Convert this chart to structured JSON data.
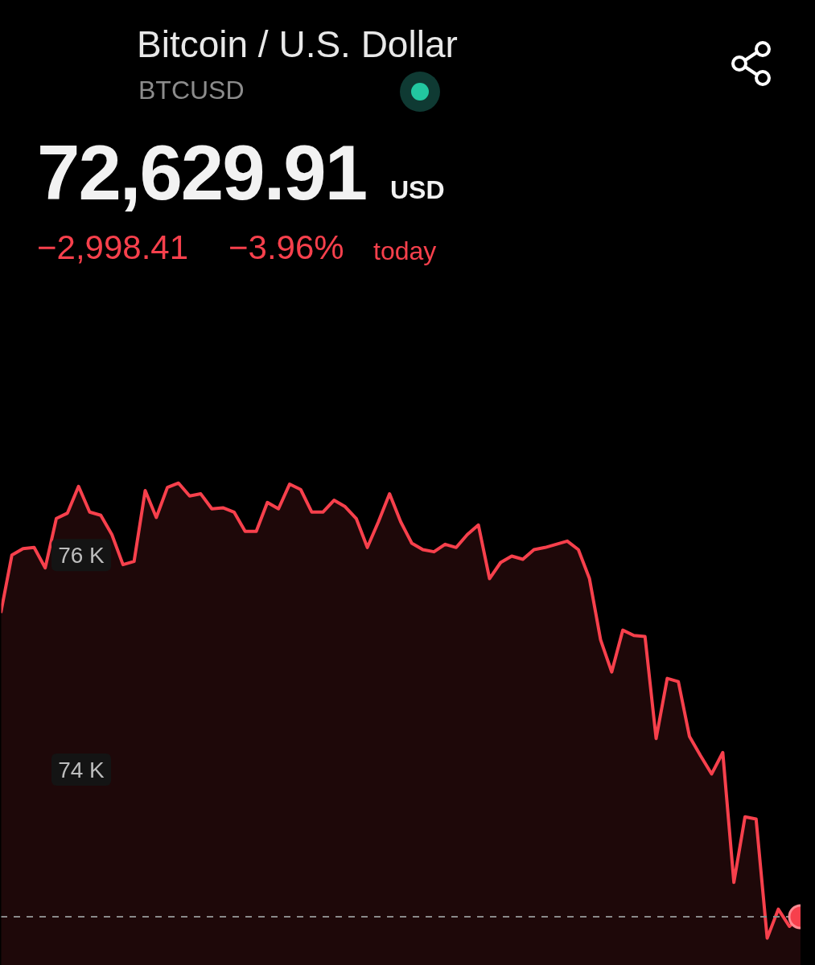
{
  "chart_data": {
    "type": "area",
    "title": "Bitcoin / U.S. Dollar",
    "subtitle": "BTCUSD",
    "annotations": [
      "72,629.91",
      "USD",
      "−2,998.41",
      "−3.96%",
      "today"
    ],
    "categories": [
      null,
      null,
      null,
      null,
      null,
      null,
      null,
      null,
      null,
      null,
      null,
      null,
      null,
      null,
      null,
      null,
      null,
      null,
      null,
      null,
      null,
      null,
      null,
      null,
      null,
      null,
      null,
      null,
      null,
      null,
      null,
      null,
      null,
      null,
      null,
      null,
      null,
      null,
      null,
      null,
      null,
      null,
      null,
      null,
      null,
      null,
      null,
      null,
      null,
      null,
      null,
      null,
      null,
      null,
      null,
      null,
      null,
      null,
      null,
      null,
      null,
      null,
      null,
      null,
      null,
      null,
      null,
      null,
      null,
      null,
      null,
      null,
      null
    ],
    "series": [
      {
        "color": "#f7404c",
        "marker": "none",
        "values": [
          75460,
          76000,
          76060,
          76070,
          75880,
          76340,
          76390,
          76640,
          76400,
          76370,
          76190,
          75910,
          75940,
          76600,
          76350,
          76630,
          76670,
          76550,
          76570,
          76430,
          76440,
          76400,
          76220,
          76220,
          76490,
          76430,
          76660,
          76610,
          76400,
          76400,
          76510,
          76450,
          76340,
          76070,
          76310,
          76570,
          76310,
          76110,
          76050,
          76030,
          76100,
          76070,
          76190,
          76280,
          75780,
          75930,
          75990,
          75960,
          76050,
          76070,
          76100,
          76130,
          76050,
          75780,
          75210,
          74910,
          75300,
          75250,
          75240,
          74290,
          74850,
          74820,
          74310,
          74130,
          73960,
          74160,
          72950,
          73560,
          73540,
          72430,
          72700,
          72540,
          72630
        ]
      },
      {
        "type": "scatter",
        "color": "#f7404c",
        "marker": "circle",
        "values": [
          null,
          null,
          null,
          null,
          null,
          null,
          null,
          null,
          null,
          null,
          null,
          null,
          null,
          null,
          null,
          null,
          null,
          null,
          null,
          null,
          null,
          null,
          null,
          null,
          null,
          null,
          null,
          null,
          null,
          null,
          null,
          null,
          null,
          null,
          null,
          null,
          null,
          null,
          null,
          null,
          null,
          null,
          null,
          null,
          null,
          null,
          null,
          null,
          null,
          null,
          null,
          null,
          null,
          null,
          null,
          null,
          null,
          null,
          null,
          null,
          null,
          null,
          null,
          null,
          null,
          null,
          null,
          null,
          null,
          null,
          null,
          null,
          72630
        ]
      }
    ],
    "ylim": [
      72180,
      77200
    ],
    "yticks": [
      {
        "value": 74000,
        "label": "74 K"
      },
      {
        "value": 76000,
        "label": "76 K"
      }
    ],
    "tick_labels": "y",
    "grid": false,
    "legend": false,
    "ref_lines": [
      {
        "axis": "y",
        "value": 72630,
        "color": "#8a8a8a",
        "line_style": "dashed"
      }
    ]
  }
}
